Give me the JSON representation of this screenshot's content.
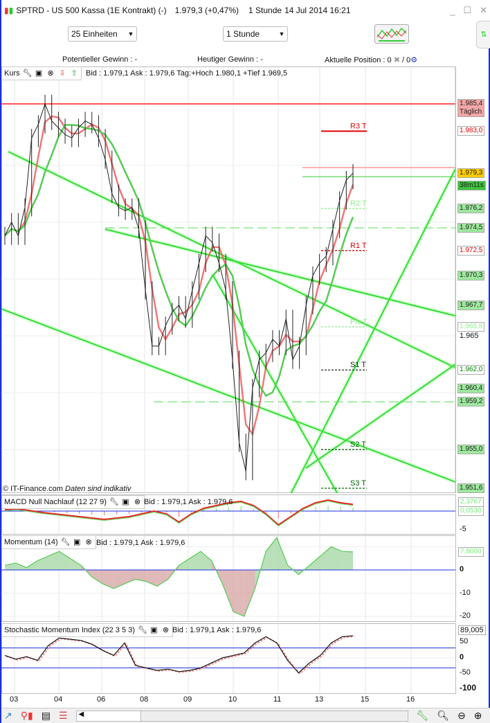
{
  "window": {
    "title": "SPTRD - US 500 Kassa (1E Kontrakt) (-)",
    "price": "1.979,3 (+0,47%)",
    "interval": "1 Stunde",
    "datetime": "14 Jul 2014 16:21",
    "minimize": "_",
    "maximize": "☐",
    "close": "✕"
  },
  "toolbar": {
    "units": "25 Einheiten",
    "timeframe": "1 Stunde"
  },
  "info": {
    "potential": "Potentieller Gewinn : -",
    "today": "Heutiger Gewinn : -",
    "position_label": "Aktuelle Position : 0",
    "position_sep": "/ 0"
  },
  "main_panel": {
    "name": "Kurs",
    "quote": "Bid : 1.979,1 Ask : 1.979,6 Tag:+Hoch 1.980,1 +Tief 1.969,5",
    "copyright": "© IT-Finance.com",
    "disclaimer": "Daten sind indikativ"
  },
  "price_axis": {
    "labels": [
      {
        "text": "1.985,4",
        "sub": "Täglich",
        "bg": "#f4a6a6",
        "color": "#222",
        "price": 1985.4
      },
      {
        "text": "1.983,0",
        "bg": "#ffffff",
        "color": "#e00000",
        "price": 1983.0
      },
      {
        "text": "1.979,3",
        "bg": "#ffcc00",
        "color": "#222",
        "price": 1979.3
      },
      {
        "text": "38m11s",
        "bg": "#3cc43c",
        "color": "#222",
        "price": 1978.2
      },
      {
        "text": "1.976,2",
        "bg": "#9ee89e",
        "color": "#222",
        "price": 1976.2
      },
      {
        "text": "1.974,5",
        "bg": "#9ee89e",
        "color": "#222",
        "price": 1974.5
      },
      {
        "text": "1.972,5",
        "bg": "#ffffff",
        "color": "#e00000",
        "price": 1972.5
      },
      {
        "text": "1.970,3",
        "bg": "#9ee89e",
        "color": "#222",
        "price": 1970.3
      },
      {
        "text": "1.967,7",
        "bg": "#9ee89e",
        "color": "#222",
        "price": 1967.7
      },
      {
        "text": "1.965,8",
        "bg": "#ffffff",
        "color": "#8fef8f",
        "price": 1965.8
      },
      {
        "text": "1.962,0",
        "bg": "#ffffff",
        "color": "#008000",
        "price": 1962.0
      },
      {
        "text": "1.960,4",
        "bg": "#9ee89e",
        "color": "#222",
        "price": 1960.4
      },
      {
        "text": "1.959,2",
        "bg": "#9ee89e",
        "color": "#222",
        "price": 1959.2
      },
      {
        "text": "1.955,0",
        "bg": "#9ee89e",
        "color": "#222",
        "price": 1955.0
      },
      {
        "text": "1.951,6",
        "bg": "#9ee89e",
        "color": "#222",
        "price": 1951.6
      }
    ],
    "ticks": [
      {
        "text": "1.965",
        "price": 1965
      }
    ]
  },
  "pivots": [
    {
      "label": "R3 T",
      "price": 1983.0,
      "color": "#e00000"
    },
    {
      "label": "R2 T",
      "price": 1976.2,
      "color": "#8fef8f"
    },
    {
      "label": "R1 T",
      "price": 1972.5,
      "color": "#e00000"
    },
    {
      "label": "Piv T",
      "price": 1965.8,
      "color": "#8fef8f"
    },
    {
      "label": "S1 T",
      "price": 1962.0,
      "color": "#222222"
    },
    {
      "label": "S2 T",
      "price": 1955.0,
      "color": "#006600"
    },
    {
      "label": "S3 T",
      "price": 1951.6,
      "color": "#006600"
    }
  ],
  "macd": {
    "name": "MACD Null Nachlauf (12 27 9)",
    "quote": "Bid : 1.979,1 Ask : 1.979,6",
    "value1": "2,3767",
    "value2": "0,0530",
    "tick": "-5"
  },
  "momentum": {
    "name": "Momentum (14)",
    "quote": "Bid : 1.979,1 Ask : 1.979,6",
    "value": "7,8000",
    "ticks": [
      "0",
      "-10",
      "-20"
    ]
  },
  "smi": {
    "name": "Stochastic Momentum Index (22 3 5 3)",
    "quote": "Bid : 1.979,1 Ask : 1.979,6",
    "value": "89,005",
    "ticks": [
      "50",
      "0",
      "-50",
      "-100"
    ]
  },
  "x_axis": {
    "labels": [
      "03",
      "04",
      "06",
      "08",
      "09",
      "10",
      "11",
      "13",
      "15",
      "16"
    ]
  },
  "colors": {
    "up": "#33dd33",
    "down": "#e83030",
    "accent": "#1a2ee0"
  },
  "chart_data": [
    {
      "type": "line",
      "title": "SPTRD - US 500 Kassa",
      "ylim": [
        1950,
        1987
      ],
      "x_ticks": [
        "03",
        "04",
        "06",
        "08",
        "09",
        "10",
        "11",
        "13",
        "15",
        "16"
      ],
      "series": [
        {
          "values": [
            1973.8,
            1975.0,
            1973.8,
            1976.3,
            1982.4,
            1983.6,
            1985.4,
            1983.9,
            1983.3,
            1982.7,
            1982.4,
            1983.3,
            1983.9,
            1983.6,
            1982.4,
            1980.5,
            1977.5,
            1976.3,
            1976.0,
            1976.3,
            1974.4,
            1969.0,
            1964.1,
            1964.1,
            1965.9,
            1967.1,
            1967.7,
            1966.5,
            1969.0,
            1971.4,
            1973.8,
            1973.2,
            1971.4,
            1969.0,
            1962.9,
            1955.6,
            1953.1,
            1960.4,
            1962.9,
            1963.5,
            1964.7,
            1964.1,
            1966.5,
            1962.9,
            1964.1,
            1967.7,
            1970.3,
            1971.4,
            1972.0,
            1974.4,
            1976.9,
            1978.7,
            1979.3
          ]
        }
      ]
    },
    {
      "type": "line",
      "title": "MACD Null Nachlauf (12 27 9)",
      "series": [
        {
          "values": [
            0.5,
            0.8,
            0.2,
            -0.5,
            -1,
            -1.5,
            -2,
            -2.5,
            -3,
            -2.5,
            -2,
            -1,
            0,
            -1,
            -4,
            -1,
            1,
            2,
            3,
            3.5,
            2,
            -1,
            -5,
            -2,
            1,
            3,
            4,
            3,
            2.4
          ]
        }
      ]
    },
    {
      "type": "area",
      "title": "Momentum (14)",
      "ylim": [
        -22,
        12
      ],
      "series": [
        {
          "values": [
            2,
            3,
            1,
            4,
            6,
            8,
            5,
            2,
            -3,
            -6,
            -8,
            -6,
            -4,
            -5,
            -7,
            -4,
            2,
            5,
            8,
            4,
            -6,
            -18,
            -20,
            -8,
            8,
            14,
            2,
            -2,
            2,
            6,
            10,
            8,
            7.8
          ]
        }
      ]
    },
    {
      "type": "line",
      "title": "Stochastic Momentum Index (22 3 5 3)",
      "ylim": [
        -100,
        100
      ],
      "series": [
        {
          "values": [
            10,
            -5,
            5,
            -10,
            50,
            80,
            75,
            70,
            55,
            30,
            10,
            60,
            -30,
            -40,
            -50,
            -45,
            -55,
            -50,
            -40,
            -20,
            0,
            10,
            20,
            60,
            85,
            60,
            -10,
            -60,
            -20,
            10,
            60,
            85,
            89
          ]
        }
      ]
    }
  ]
}
